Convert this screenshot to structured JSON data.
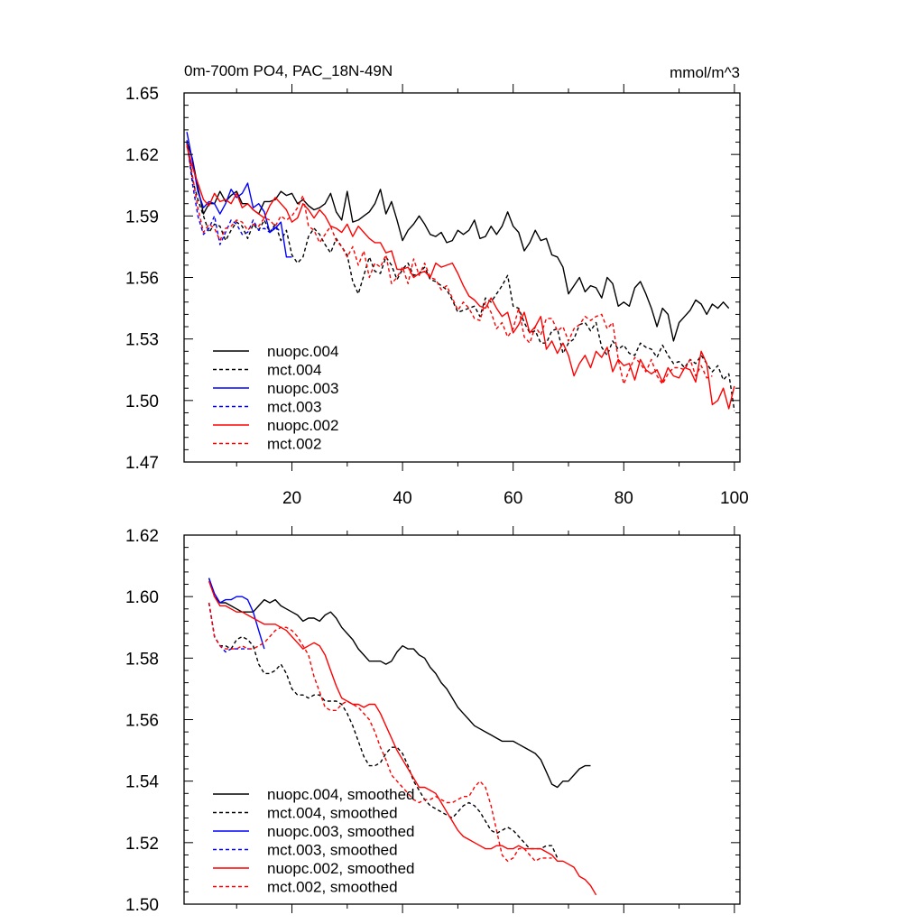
{
  "colors": {
    "black": "#000000",
    "blue": "#0000ff",
    "red": "#ff0000"
  },
  "chart_data": [
    {
      "type": "line",
      "title_left": "0m-700m PO4, PAC_18N-49N",
      "title_right": "mmol/m^3",
      "xlabel": "",
      "ylabel": "",
      "xlim": [
        0.5,
        101
      ],
      "ylim": [
        1.47,
        1.65
      ],
      "x_ticks": [
        20,
        40,
        60,
        80,
        100
      ],
      "x_tick_labels": [
        "20",
        "40",
        "60",
        "80",
        "100"
      ],
      "y_ticks": [
        1.47,
        1.5,
        1.53,
        1.56,
        1.59,
        1.62,
        1.65
      ],
      "y_tick_labels": [
        "1.47",
        "1.50",
        "1.53",
        "1.56",
        "1.59",
        "1.62",
        "1.65"
      ],
      "legend_position": "bottom-left",
      "series": [
        {
          "name": "nuopc.004",
          "color": "#000000",
          "dashed": false,
          "x_start": 1,
          "values": [
            1.626,
            1.618,
            1.604,
            1.591,
            1.596,
            1.596,
            1.602,
            1.597,
            1.6,
            1.602,
            1.596,
            1.596,
            1.593,
            1.591,
            1.597,
            1.597,
            1.598,
            1.602,
            1.6,
            1.601,
            1.596,
            1.598,
            1.595,
            1.593,
            1.594,
            1.596,
            1.601,
            1.592,
            1.588,
            1.602,
            1.587,
            1.588,
            1.59,
            1.592,
            1.596,
            1.603,
            1.591,
            1.597,
            1.588,
            1.578,
            1.583,
            1.586,
            1.59,
            1.586,
            1.581,
            1.58,
            1.582,
            1.577,
            1.578,
            1.583,
            1.581,
            1.583,
            1.588,
            1.579,
            1.58,
            1.585,
            1.581,
            1.585,
            1.592,
            1.585,
            1.582,
            1.573,
            1.577,
            1.583,
            1.578,
            1.579,
            1.571,
            1.57,
            1.565,
            1.552,
            1.556,
            1.56,
            1.553,
            1.556,
            1.555,
            1.55,
            1.56,
            1.557,
            1.546,
            1.548,
            1.546,
            1.555,
            1.558,
            1.552,
            1.545,
            1.536,
            1.545,
            1.542,
            1.529,
            1.538,
            1.541,
            1.544,
            1.549,
            1.547,
            1.542,
            1.547,
            1.545,
            1.548,
            1.545
          ]
        },
        {
          "name": "mct.004",
          "color": "#000000",
          "dashed": true,
          "x_start": 1,
          "values": [
            1.626,
            1.608,
            1.598,
            1.59,
            1.582,
            1.586,
            1.585,
            1.578,
            1.583,
            1.587,
            1.585,
            1.579,
            1.586,
            1.583,
            1.588,
            1.582,
            1.586,
            1.578,
            1.583,
            1.571,
            1.567,
            1.57,
            1.58,
            1.584,
            1.581,
            1.576,
            1.572,
            1.579,
            1.575,
            1.571,
            1.558,
            1.552,
            1.561,
            1.57,
            1.563,
            1.562,
            1.57,
            1.566,
            1.559,
            1.564,
            1.567,
            1.561,
            1.562,
            1.565,
            1.559,
            1.558,
            1.556,
            1.554,
            1.549,
            1.543,
            1.544,
            1.545,
            1.546,
            1.541,
            1.55,
            1.548,
            1.552,
            1.556,
            1.561,
            1.546,
            1.545,
            1.538,
            1.533,
            1.534,
            1.528,
            1.528,
            1.534,
            1.535,
            1.523,
            1.528,
            1.53,
            1.537,
            1.538,
            1.534,
            1.538,
            1.526,
            1.522,
            1.529,
            1.525,
            1.527,
            1.523,
            1.522,
            1.528,
            1.526,
            1.525,
            1.521,
            1.527,
            1.522,
            1.518,
            1.519,
            1.516,
            1.52,
            1.518,
            1.522,
            1.518,
            1.514,
            1.517,
            1.51,
            1.513,
            1.495
          ]
        },
        {
          "name": "nuopc.003",
          "color": "#0000ff",
          "dashed": false,
          "x_start": 1,
          "values": [
            1.631,
            1.617,
            1.602,
            1.594,
            1.597,
            1.596,
            1.591,
            1.596,
            1.603,
            1.599,
            1.601,
            1.606,
            1.594,
            1.596,
            1.592,
            1.582,
            1.584,
            1.587,
            1.57,
            1.57
          ]
        },
        {
          "name": "mct.003",
          "color": "#0000ff",
          "dashed": true,
          "x_start": 1,
          "values": [
            1.627,
            1.606,
            1.59,
            1.581,
            1.584,
            1.59,
            1.576,
            1.582,
            1.588,
            1.586,
            1.581,
            1.582,
            1.588,
            1.583,
            1.584,
            1.582,
            1.585,
            1.582
          ]
        },
        {
          "name": "nuopc.002",
          "color": "#ff0000",
          "dashed": false,
          "x_start": 1,
          "values": [
            1.624,
            1.614,
            1.606,
            1.598,
            1.595,
            1.601,
            1.597,
            1.598,
            1.596,
            1.601,
            1.594,
            1.596,
            1.593,
            1.591,
            1.589,
            1.595,
            1.599,
            1.596,
            1.593,
            1.587,
            1.589,
            1.596,
            1.593,
            1.589,
            1.593,
            1.59,
            1.585,
            1.584,
            1.582,
            1.586,
            1.58,
            1.585,
            1.582,
            1.579,
            1.577,
            1.577,
            1.572,
            1.573,
            1.564,
            1.564,
            1.565,
            1.56,
            1.562,
            1.563,
            1.56,
            1.567,
            1.565,
            1.566,
            1.567,
            1.562,
            1.556,
            1.551,
            1.549,
            1.546,
            1.545,
            1.55,
            1.545,
            1.541,
            1.543,
            1.533,
            1.537,
            1.543,
            1.533,
            1.536,
            1.541,
            1.525,
            1.529,
            1.523,
            1.528,
            1.522,
            1.512,
            1.518,
            1.522,
            1.516,
            1.524,
            1.521,
            1.526,
            1.514,
            1.52,
            1.517,
            1.518,
            1.51,
            1.52,
            1.515,
            1.513,
            1.515,
            1.509,
            1.516,
            1.512,
            1.511,
            1.516,
            1.515,
            1.509,
            1.524,
            1.518,
            1.498,
            1.5,
            1.506,
            1.496,
            1.507
          ]
        },
        {
          "name": "mct.002",
          "color": "#ff0000",
          "dashed": true,
          "x_start": 1,
          "values": [
            1.625,
            1.61,
            1.594,
            1.582,
            1.586,
            1.584,
            1.578,
            1.584,
            1.585,
            1.588,
            1.587,
            1.583,
            1.586,
            1.585,
            1.589,
            1.588,
            1.585,
            1.59,
            1.588,
            1.59,
            1.594,
            1.6,
            1.585,
            1.583,
            1.577,
            1.581,
            1.585,
            1.578,
            1.575,
            1.57,
            1.575,
            1.566,
            1.573,
            1.56,
            1.567,
            1.565,
            1.571,
            1.557,
            1.56,
            1.565,
            1.557,
            1.569,
            1.561,
            1.567,
            1.56,
            1.559,
            1.554,
            1.556,
            1.55,
            1.544,
            1.548,
            1.545,
            1.54,
            1.539,
            1.548,
            1.543,
            1.535,
            1.538,
            1.531,
            1.535,
            1.545,
            1.531,
            1.528,
            1.536,
            1.532,
            1.54,
            1.54,
            1.534,
            1.536,
            1.529,
            1.535,
            1.537,
            1.541,
            1.539,
            1.541,
            1.542,
            1.535,
            1.538,
            1.52,
            1.508,
            1.515,
            1.521,
            1.518,
            1.514,
            1.52,
            1.512,
            1.508,
            1.513,
            1.516,
            1.516,
            1.515,
            1.52,
            1.512,
            1.517,
            1.511,
            1.512
          ]
        }
      ]
    },
    {
      "type": "line",
      "xlabel": "",
      "ylabel": "",
      "xlim": [
        0.5,
        101
      ],
      "ylim": [
        1.5,
        1.62
      ],
      "x_ticks": [
        20,
        40,
        60,
        80,
        100
      ],
      "y_ticks": [
        1.5,
        1.52,
        1.54,
        1.56,
        1.58,
        1.6,
        1.62
      ],
      "y_tick_labels": [
        "1.50",
        "1.52",
        "1.54",
        "1.56",
        "1.58",
        "1.60",
        "1.62"
      ],
      "legend_position": "bottom-left",
      "series": [
        {
          "name": "nuopc.004, smoothed",
          "color": "#000000",
          "dashed": false,
          "x_start": 5,
          "values": [
            1.606,
            1.6,
            1.598,
            1.598,
            1.597,
            1.596,
            1.595,
            1.595,
            1.595,
            1.597,
            1.599,
            1.598,
            1.599,
            1.597,
            1.596,
            1.595,
            1.594,
            1.592,
            1.593,
            1.593,
            1.592,
            1.594,
            1.595,
            1.593,
            1.59,
            1.588,
            1.586,
            1.583,
            1.581,
            1.579,
            1.579,
            1.579,
            1.578,
            1.579,
            1.582,
            1.584,
            1.583,
            1.583,
            1.581,
            1.58,
            1.577,
            1.575,
            1.572,
            1.57,
            1.567,
            1.564,
            1.562,
            1.56,
            1.558,
            1.557,
            1.556,
            1.555,
            1.554,
            1.553,
            1.553,
            1.553,
            1.552,
            1.551,
            1.55,
            1.549,
            1.547,
            1.543,
            1.539,
            1.538,
            1.54,
            1.54,
            1.542,
            1.544,
            1.545,
            1.545
          ]
        },
        {
          "name": "mct.004, smoothed",
          "color": "#000000",
          "dashed": true,
          "x_start": 5,
          "values": [
            1.598,
            1.587,
            1.584,
            1.584,
            1.583,
            1.586,
            1.587,
            1.586,
            1.584,
            1.578,
            1.575,
            1.575,
            1.576,
            1.578,
            1.575,
            1.57,
            1.568,
            1.568,
            1.567,
            1.568,
            1.568,
            1.566,
            1.566,
            1.566,
            1.565,
            1.562,
            1.558,
            1.553,
            1.548,
            1.545,
            1.545,
            1.546,
            1.549,
            1.551,
            1.551,
            1.549,
            1.545,
            1.54,
            1.537,
            1.534,
            1.532,
            1.531,
            1.53,
            1.529,
            1.528,
            1.53,
            1.532,
            1.533,
            1.532,
            1.53,
            1.527,
            1.524,
            1.523,
            1.524,
            1.525,
            1.524,
            1.522,
            1.52,
            1.518,
            1.518,
            1.518,
            1.519,
            1.519,
            1.515
          ]
        },
        {
          "name": "nuopc.003, smoothed",
          "color": "#0000ff",
          "dashed": false,
          "x_start": 5,
          "values": [
            1.606,
            1.601,
            1.598,
            1.599,
            1.599,
            1.6,
            1.6,
            1.599,
            1.595,
            1.589,
            1.583
          ]
        },
        {
          "name": "mct.003, smoothed",
          "color": "#0000ff",
          "dashed": true,
          "x_start": 5,
          "values": [
            1.598,
            1.587,
            1.584,
            1.582,
            1.583,
            1.583,
            1.583,
            1.583,
            1.583
          ]
        },
        {
          "name": "nuopc.002, smoothed",
          "color": "#ff0000",
          "dashed": false,
          "x_start": 5,
          "values": [
            1.605,
            1.6,
            1.597,
            1.597,
            1.596,
            1.595,
            1.595,
            1.594,
            1.593,
            1.592,
            1.591,
            1.591,
            1.591,
            1.59,
            1.589,
            1.587,
            1.585,
            1.583,
            1.584,
            1.585,
            1.584,
            1.581,
            1.576,
            1.571,
            1.567,
            1.566,
            1.565,
            1.565,
            1.564,
            1.565,
            1.565,
            1.562,
            1.558,
            1.554,
            1.55,
            1.547,
            1.544,
            1.541,
            1.538,
            1.538,
            1.537,
            1.536,
            1.533,
            1.53,
            1.527,
            1.524,
            1.522,
            1.521,
            1.52,
            1.519,
            1.518,
            1.518,
            1.519,
            1.519,
            1.518,
            1.518,
            1.519,
            1.518,
            1.518,
            1.518,
            1.518,
            1.517,
            1.516,
            1.514,
            1.514,
            1.513,
            1.512,
            1.509,
            1.508,
            1.506,
            1.503
          ]
        },
        {
          "name": "mct.002, smoothed",
          "color": "#ff0000",
          "dashed": true,
          "x_start": 5,
          "values": [
            1.598,
            1.587,
            1.584,
            1.583,
            1.583,
            1.583,
            1.584,
            1.583,
            1.583,
            1.584,
            1.585,
            1.587,
            1.589,
            1.59,
            1.59,
            1.589,
            1.587,
            1.584,
            1.581,
            1.574,
            1.569,
            1.564,
            1.563,
            1.563,
            1.565,
            1.566,
            1.565,
            1.564,
            1.562,
            1.56,
            1.556,
            1.551,
            1.547,
            1.542,
            1.54,
            1.538,
            1.536,
            1.534,
            1.533,
            1.534,
            1.534,
            1.535,
            1.534,
            1.533,
            1.533,
            1.534,
            1.535,
            1.535,
            1.538,
            1.54,
            1.538,
            1.532,
            1.524,
            1.516,
            1.514,
            1.515,
            1.518,
            1.518,
            1.516,
            1.514,
            1.515,
            1.515,
            1.515
          ]
        }
      ]
    }
  ]
}
